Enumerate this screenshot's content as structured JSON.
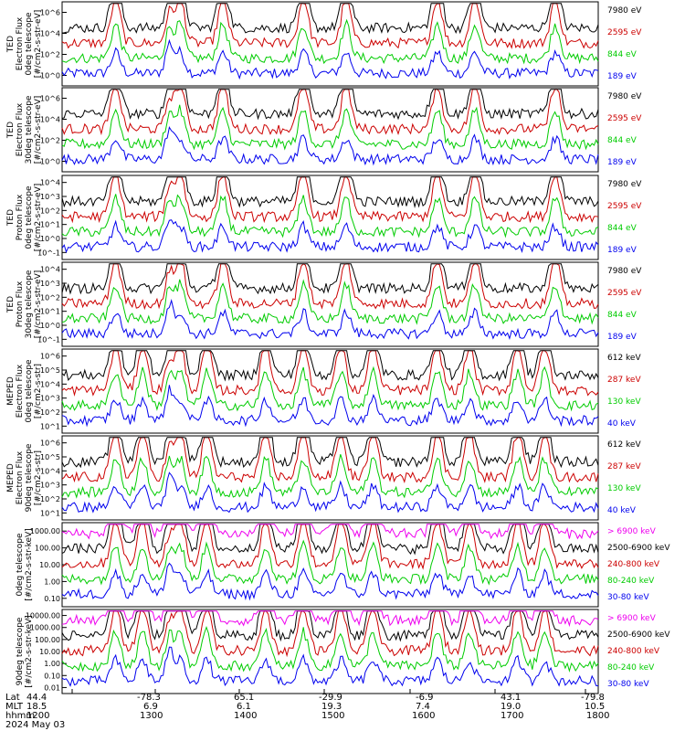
{
  "chart_data": [
    {
      "type": "line",
      "ylabel": [
        "TED",
        "Electron Flux",
        "0deg telescope",
        "[#/cm2-s-str-eV]"
      ],
      "log": true,
      "yticks": [
        "10^0",
        "10^2",
        "10^4",
        "10^6"
      ],
      "series": [
        {
          "name": "7980 eV",
          "color": "#000000"
        },
        {
          "name": "2595 eV",
          "color": "#cc0000"
        },
        {
          "name": "844 eV",
          "color": "#00cc00"
        },
        {
          "name": "189 eV",
          "color": "#0000ee"
        }
      ]
    },
    {
      "type": "line",
      "ylabel": [
        "TED",
        "Electron Flux",
        "30deg telescope",
        "[#/cm2-s-str-eV]"
      ],
      "log": true,
      "yticks": [
        "10^0",
        "10^2",
        "10^4",
        "10^6"
      ],
      "series": [
        {
          "name": "7980 eV",
          "color": "#000000"
        },
        {
          "name": "2595 eV",
          "color": "#cc0000"
        },
        {
          "name": "844 eV",
          "color": "#00cc00"
        },
        {
          "name": "189 eV",
          "color": "#0000ee"
        }
      ]
    },
    {
      "type": "line",
      "ylabel": [
        "TED",
        "Proton Flux",
        "0deg telescope",
        "[#/cm2-s-str-eV]"
      ],
      "log": true,
      "yticks": [
        "10^-1",
        "10^0",
        "10^1",
        "10^2",
        "10^3",
        "10^4"
      ],
      "series": [
        {
          "name": "7980 eV",
          "color": "#000000"
        },
        {
          "name": "2595 eV",
          "color": "#cc0000"
        },
        {
          "name": "844 eV",
          "color": "#00cc00"
        },
        {
          "name": "189 eV",
          "color": "#0000ee"
        }
      ]
    },
    {
      "type": "line",
      "ylabel": [
        "TED",
        "Proton Flux",
        "30deg telescope",
        "[#/cm2-s-str-eV]"
      ],
      "log": true,
      "yticks": [
        "10^-1",
        "10^0",
        "10^1",
        "10^2",
        "10^3",
        "10^4"
      ],
      "series": [
        {
          "name": "7980 eV",
          "color": "#000000"
        },
        {
          "name": "2595 eV",
          "color": "#cc0000"
        },
        {
          "name": "844 eV",
          "color": "#00cc00"
        },
        {
          "name": "189 eV",
          "color": "#0000ee"
        }
      ]
    },
    {
      "type": "line",
      "ylabel": [
        "MEPED",
        "Electron Flux",
        "0deg telescope",
        "[#/cm2-s-str]"
      ],
      "log": true,
      "yticks": [
        "10^1",
        "10^2",
        "10^3",
        "10^4",
        "10^5",
        "10^6"
      ],
      "series": [
        {
          "name": "612 keV",
          "color": "#000000"
        },
        {
          "name": "287 keV",
          "color": "#cc0000"
        },
        {
          "name": "130 keV",
          "color": "#00cc00"
        },
        {
          "name": "40 keV",
          "color": "#0000ee"
        }
      ]
    },
    {
      "type": "line",
      "ylabel": [
        "MEPED",
        "Electron Flux",
        "90deg telescope",
        "[#/cm2-s-str]"
      ],
      "log": true,
      "yticks": [
        "10^1",
        "10^2",
        "10^3",
        "10^4",
        "10^5",
        "10^6"
      ],
      "series": [
        {
          "name": "612 keV",
          "color": "#000000"
        },
        {
          "name": "287 keV",
          "color": "#cc0000"
        },
        {
          "name": "130 keV",
          "color": "#00cc00"
        },
        {
          "name": "40 keV",
          "color": "#0000ee"
        }
      ]
    },
    {
      "type": "line",
      "ylabel": [
        "0deg telescope",
        "[#/cm2-s-str-keV]"
      ],
      "log": true,
      "yticks": [
        "0.10",
        "1.00",
        "10.00",
        "100.00",
        "1000.00"
      ],
      "series": [
        {
          "name": "> 6900 keV",
          "color": "#ee00ee"
        },
        {
          "name": "2500-6900 keV",
          "color": "#000000"
        },
        {
          "name": "240-800 keV",
          "color": "#cc0000"
        },
        {
          "name": "80-240 keV",
          "color": "#00cc00"
        },
        {
          "name": "30-80 keV",
          "color": "#0000ee"
        }
      ]
    },
    {
      "type": "line",
      "ylabel": [
        "90deg telescope",
        "[#/cm2-s-str-keV]"
      ],
      "log": true,
      "yticks": [
        "0.01",
        "0.10",
        "1.00",
        "10.00",
        "100.00",
        "1000.00",
        "10000.00"
      ],
      "series": [
        {
          "name": "> 6900 keV",
          "color": "#ee00ee"
        },
        {
          "name": "2500-6900 keV",
          "color": "#000000"
        },
        {
          "name": "240-800 keV",
          "color": "#cc0000"
        },
        {
          "name": "80-240 keV",
          "color": "#00cc00"
        },
        {
          "name": "30-80 keV",
          "color": "#0000ee"
        }
      ]
    }
  ],
  "x_axis": {
    "row_labels": [
      "Lat",
      "MLT",
      "hhmm"
    ],
    "columns": [
      [
        "44.4",
        "18.5",
        "1200"
      ],
      [
        "-78.3",
        "6.9",
        "1300"
      ],
      [
        "65.1",
        "6.1",
        "1400"
      ],
      [
        "-29.9",
        "19.3",
        "1500"
      ],
      [
        "-6.9",
        "7.4",
        "1600"
      ],
      [
        "43.1",
        "19.0",
        "1700"
      ],
      [
        "-79.8",
        "10.5",
        "1800"
      ]
    ],
    "date": "2024 May 03"
  }
}
